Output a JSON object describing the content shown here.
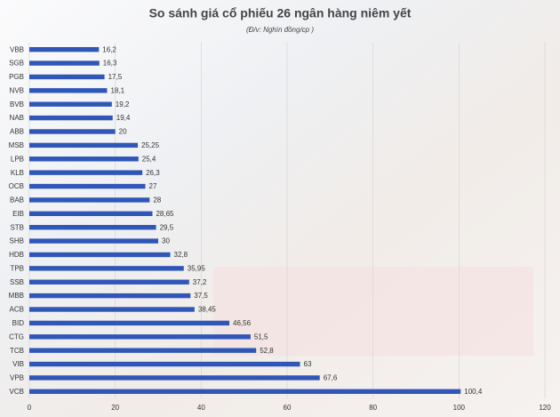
{
  "chart_data": {
    "type": "hbar",
    "title": "So sánh giá cổ phiếu 26 ngân hàng niêm yết",
    "subtitle": "(Đ/v: Nghìn đồng/cp )",
    "categories": [
      "VBB",
      "SGB",
      "PGB",
      "NVB",
      "BVB",
      "NAB",
      "ABB",
      "MSB",
      "LPB",
      "KLB",
      "OCB",
      "BAB",
      "EIB",
      "STB",
      "SHB",
      "HDB",
      "TPB",
      "SSB",
      "MBB",
      "ACB",
      "BID",
      "CTG",
      "TCB",
      "VIB",
      "VPB",
      "VCB"
    ],
    "values": [
      16.2,
      16.3,
      17.5,
      18.1,
      19.2,
      19.4,
      20,
      25.25,
      25.4,
      26.3,
      27,
      28,
      28.65,
      29.5,
      30,
      32.8,
      35.95,
      37.2,
      37.5,
      38.45,
      46.56,
      51.5,
      52.8,
      63,
      67.6,
      100.4
    ],
    "value_labels": [
      "16,2",
      "16,3",
      "17,5",
      "18,1",
      "19,2",
      "19,4",
      "20",
      "25,25",
      "25,4",
      "26,3",
      "27",
      "28",
      "28,65",
      "29,5",
      "30",
      "32,8",
      "35,95",
      "37,2",
      "37,5",
      "38,45",
      "46,56",
      "51,5",
      "52,8",
      "63",
      "67,6",
      "100,4"
    ],
    "color": "#3057b8",
    "xlim": [
      0,
      120
    ],
    "xticks": [
      0,
      20,
      40,
      60,
      80,
      100,
      120
    ],
    "grid": true
  }
}
